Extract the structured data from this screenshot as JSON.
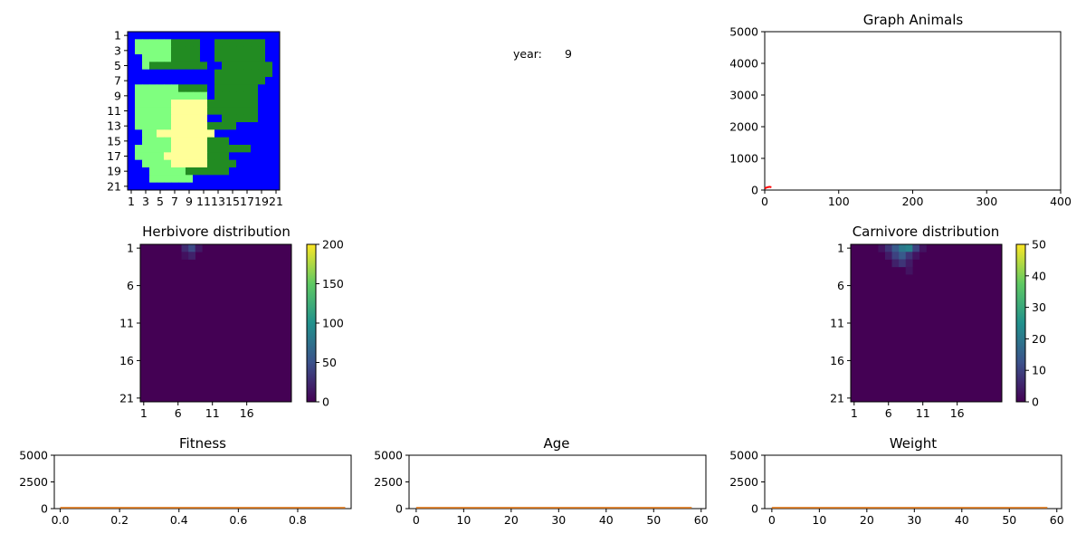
{
  "year_label": "year:",
  "year_value": "9",
  "island_map": {
    "x_ticks": [
      "1",
      "3",
      "5",
      "7",
      "9",
      "11",
      "13",
      "15",
      "17",
      "19",
      "21"
    ],
    "y_ticks": [
      "1",
      "3",
      "5",
      "7",
      "9",
      "11",
      "13",
      "15",
      "17",
      "19",
      "21"
    ],
    "colors": {
      "W": "#0000ff",
      "H": "#228b22",
      "L": "#7fff7f",
      "D": "#ffff99"
    },
    "rows": [
      "WWWWWWWWWWWWWWWWWWWWW",
      "WLLLLLHHHHWWHHHHHHHWW",
      "WLLLLLHHHHWWHHHHHHHWW",
      "WWLLLLHHHHWWHHHHHHHWW",
      "WWLHHHHHHHHWWHHHHHHHW",
      "WWWWWWWWWWWWHHHHHHHHW",
      "WWWWWWWWWWWWHHHHHHHWW",
      "WLLLLLLHHHHWHHHHHHWWW",
      "WLLLLLLLLLLWHHHHHHWWW",
      "WLLLLLDDDDDHHHHHHHWWW",
      "WLLLLLDDDDDHHHHHHHWWW",
      "WLLLLLDDDDDWWHHHHHWWW",
      "WLLLLLDDDDDHHHHWWWWWW",
      "WWLLDDDDDDDDWWWWWWWWW",
      "WWLLLLDDDDDHHHWWWWWWW",
      "WLLLLLDDDDDHHHHHHWWWW",
      "WLLLLDDDDDDHHHWWWWWWW",
      "WWLLLLDDDDDHHHHWWWWWW",
      "WWWLLLLLHHHHHHWWWWWWW",
      "WWWLLLLLLWWWWWWWWWWWW",
      "WWWWWWWWWWWWWWWWWWWWW"
    ]
  },
  "chart_data": [
    {
      "type": "line",
      "title": "Graph Animals",
      "xlim": [
        0,
        400
      ],
      "ylim": [
        0,
        5000
      ],
      "x_ticks": [
        0,
        100,
        200,
        300,
        400
      ],
      "y_ticks": [
        0,
        1000,
        2000,
        3000,
        4000,
        5000
      ],
      "series": [
        {
          "color": "#ff0000",
          "x": [
            0,
            1,
            2,
            3,
            4,
            5,
            6,
            7,
            8,
            9
          ],
          "y": [
            50,
            60,
            75,
            85,
            90,
            95,
            100,
            100,
            95,
            90
          ]
        }
      ]
    },
    {
      "type": "heatmap",
      "title": "Herbivore distribution",
      "x_ticks": [
        "1",
        "6",
        "11",
        "16"
      ],
      "y_ticks": [
        "1",
        "6",
        "11",
        "16",
        "21"
      ],
      "colorbar_ticks": [
        0,
        50,
        100,
        150,
        200
      ],
      "vmax": 200,
      "size": [
        21,
        22
      ],
      "hot_cells": [
        {
          "row": 1,
          "col": 6,
          "value": 25
        },
        {
          "row": 1,
          "col": 7,
          "value": 45
        },
        {
          "row": 1,
          "col": 8,
          "value": 15
        },
        {
          "row": 2,
          "col": 6,
          "value": 10
        },
        {
          "row": 2,
          "col": 7,
          "value": 20
        }
      ]
    },
    {
      "type": "heatmap",
      "title": "Carnivore distribution",
      "x_ticks": [
        "1",
        "6",
        "11",
        "16"
      ],
      "y_ticks": [
        "1",
        "6",
        "11",
        "16",
        "21"
      ],
      "colorbar_ticks": [
        0,
        10,
        20,
        30,
        40,
        50
      ],
      "vmax": 50,
      "size": [
        21,
        22
      ],
      "hot_cells": [
        {
          "row": 1,
          "col": 4,
          "value": 3
        },
        {
          "row": 1,
          "col": 5,
          "value": 8
        },
        {
          "row": 1,
          "col": 6,
          "value": 14
        },
        {
          "row": 1,
          "col": 7,
          "value": 20
        },
        {
          "row": 1,
          "col": 8,
          "value": 22
        },
        {
          "row": 1,
          "col": 9,
          "value": 10
        },
        {
          "row": 1,
          "col": 10,
          "value": 3
        },
        {
          "row": 2,
          "col": 5,
          "value": 4
        },
        {
          "row": 2,
          "col": 6,
          "value": 10
        },
        {
          "row": 2,
          "col": 7,
          "value": 14
        },
        {
          "row": 2,
          "col": 8,
          "value": 8
        },
        {
          "row": 2,
          "col": 9,
          "value": 3
        },
        {
          "row": 3,
          "col": 6,
          "value": 5
        },
        {
          "row": 3,
          "col": 7,
          "value": 8
        },
        {
          "row": 3,
          "col": 8,
          "value": 4
        },
        {
          "row": 4,
          "col": 8,
          "value": 3
        }
      ]
    },
    {
      "type": "area",
      "title": "Fitness",
      "xlim": [
        -0.02,
        0.98
      ],
      "ylim": [
        0,
        5000
      ],
      "x_ticks": [
        "0.0",
        "0.2",
        "0.4",
        "0.6",
        "0.8"
      ],
      "x_tick_values": [
        0,
        0.2,
        0.4,
        0.6,
        0.8
      ],
      "y_ticks": [
        0,
        2500,
        5000
      ],
      "series": [
        {
          "color": "#1f77b4",
          "x": [
            0,
            0.96
          ],
          "y": [
            0,
            0
          ]
        },
        {
          "color": "#ff7f0e",
          "x": [
            0,
            0.96
          ],
          "y": [
            0,
            0
          ]
        }
      ]
    },
    {
      "type": "area",
      "title": "Age",
      "xlim": [
        -1.5,
        61
      ],
      "ylim": [
        0,
        5000
      ],
      "x_ticks": [
        "0",
        "10",
        "20",
        "30",
        "40",
        "50",
        "60"
      ],
      "x_tick_values": [
        0,
        10,
        20,
        30,
        40,
        50,
        60
      ],
      "y_ticks": [
        0,
        2500,
        5000
      ],
      "series": [
        {
          "color": "#1f77b4",
          "x": [
            0,
            58
          ],
          "y": [
            0,
            0
          ]
        },
        {
          "color": "#ff7f0e",
          "x": [
            0,
            58
          ],
          "y": [
            0,
            0
          ]
        }
      ]
    },
    {
      "type": "area",
      "title": "Weight",
      "xlim": [
        -1.5,
        61
      ],
      "ylim": [
        0,
        5000
      ],
      "x_ticks": [
        "0",
        "10",
        "20",
        "30",
        "40",
        "50",
        "60"
      ],
      "x_tick_values": [
        0,
        10,
        20,
        30,
        40,
        50,
        60
      ],
      "y_ticks": [
        0,
        2500,
        5000
      ],
      "series": [
        {
          "color": "#1f77b4",
          "x": [
            0,
            58
          ],
          "y": [
            0,
            0
          ]
        },
        {
          "color": "#ff7f0e",
          "x": [
            0,
            58
          ],
          "y": [
            0,
            0
          ]
        }
      ]
    }
  ]
}
